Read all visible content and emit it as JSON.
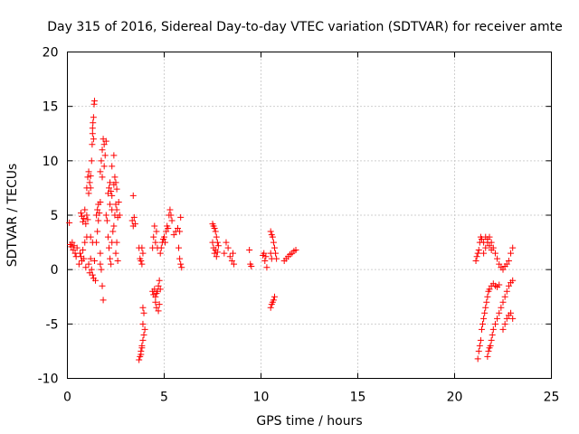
{
  "chart_data": {
    "type": "scatter",
    "title": "Day 315 of 2016, Sidereal Day-to-day VTEC variation (SDTVAR) for receiver amte",
    "xlabel": "GPS time / hours",
    "ylabel": "SDTVAR / TECUs",
    "xlim": [
      0,
      25
    ],
    "ylim": [
      -10,
      20
    ],
    "xticks": [
      0,
      5,
      10,
      15,
      20,
      25
    ],
    "yticks": [
      -10,
      -5,
      0,
      5,
      10,
      15,
      20
    ],
    "grid": true,
    "marker": "+",
    "color": "#ff0000",
    "series": [
      {
        "points": [
          [
            0.1,
            4.3
          ],
          [
            0.15,
            2.3
          ],
          [
            0.2,
            2.1
          ],
          [
            0.25,
            2.5
          ],
          [
            0.3,
            1.8
          ],
          [
            0.35,
            2.2
          ],
          [
            0.4,
            1.5
          ],
          [
            0.45,
            1.2
          ],
          [
            0.5,
            2.0
          ],
          [
            0.6,
            0.5
          ],
          [
            0.65,
            1.5
          ],
          [
            0.7,
            1.2
          ],
          [
            0.75,
            0.8
          ],
          [
            0.8,
            1.8
          ],
          [
            0.85,
            1.0
          ],
          [
            0.9,
            2.5
          ],
          [
            0.95,
            0.2
          ],
          [
            1.0,
            3.0
          ],
          [
            0.7,
            5.2
          ],
          [
            0.75,
            4.9
          ],
          [
            0.8,
            4.4
          ],
          [
            0.85,
            4.7
          ],
          [
            0.9,
            5.5
          ],
          [
            0.95,
            4.2
          ],
          [
            1.0,
            5.0
          ],
          [
            1.05,
            4.6
          ],
          [
            1.0,
            7.5
          ],
          [
            1.05,
            8.5
          ],
          [
            1.1,
            9.0
          ],
          [
            1.15,
            8.0
          ],
          [
            1.2,
            7.5
          ],
          [
            1.1,
            7.0
          ],
          [
            1.2,
            8.6
          ],
          [
            1.25,
            10.0
          ],
          [
            1.28,
            11.5
          ],
          [
            1.3,
            12.5
          ],
          [
            1.32,
            13.5
          ],
          [
            1.35,
            14.0
          ],
          [
            1.38,
            15.2
          ],
          [
            1.4,
            15.5
          ],
          [
            1.3,
            13.0
          ],
          [
            1.35,
            12.0
          ],
          [
            1.1,
            0.5
          ],
          [
            1.15,
            -0.3
          ],
          [
            1.2,
            1.0
          ],
          [
            1.25,
            0.0
          ],
          [
            1.3,
            -0.5
          ],
          [
            1.35,
            -0.8
          ],
          [
            1.4,
            0.8
          ],
          [
            1.45,
            -1.0
          ],
          [
            1.2,
            3.0
          ],
          [
            1.3,
            2.5
          ],
          [
            1.5,
            5.0
          ],
          [
            1.55,
            5.5
          ],
          [
            1.6,
            6.0
          ],
          [
            1.65,
            5.2
          ],
          [
            1.6,
            4.5
          ],
          [
            1.7,
            6.2
          ],
          [
            1.55,
            3.5
          ],
          [
            1.5,
            2.5
          ],
          [
            1.7,
            1.5
          ],
          [
            1.75,
            0.0
          ],
          [
            1.8,
            -1.5
          ],
          [
            1.85,
            -2.8
          ],
          [
            1.7,
            0.5
          ],
          [
            1.7,
            9.0
          ],
          [
            1.75,
            10.0
          ],
          [
            1.8,
            11.0
          ],
          [
            1.85,
            12.0
          ],
          [
            1.9,
            11.5
          ],
          [
            1.95,
            10.5
          ],
          [
            2.0,
            11.8
          ],
          [
            1.8,
            8.5
          ],
          [
            1.9,
            9.5
          ],
          [
            2.1,
            7.0
          ],
          [
            2.15,
            7.5
          ],
          [
            2.2,
            8.0
          ],
          [
            2.25,
            7.2
          ],
          [
            2.3,
            6.8
          ],
          [
            2.2,
            6.0
          ],
          [
            2.3,
            5.5
          ],
          [
            2.4,
            7.8
          ],
          [
            2.45,
            8.5
          ],
          [
            2.5,
            8.0
          ],
          [
            2.55,
            7.4
          ],
          [
            2.0,
            5.0
          ],
          [
            2.05,
            4.5
          ],
          [
            2.1,
            3.0
          ],
          [
            2.15,
            2.0
          ],
          [
            2.2,
            1.0
          ],
          [
            2.25,
            0.5
          ],
          [
            2.3,
            2.5
          ],
          [
            2.35,
            3.5
          ],
          [
            2.4,
            4.0
          ],
          [
            2.45,
            5.0
          ],
          [
            2.5,
            6.0
          ],
          [
            2.55,
            5.5
          ],
          [
            2.6,
            4.8
          ],
          [
            2.65,
            6.2
          ],
          [
            2.7,
            5.0
          ],
          [
            2.5,
            1.5
          ],
          [
            2.55,
            2.5
          ],
          [
            2.6,
            0.8
          ],
          [
            2.4,
            10.5
          ],
          [
            2.3,
            9.5
          ],
          [
            3.4,
            6.8
          ],
          [
            3.35,
            4.5
          ],
          [
            3.4,
            4.0
          ],
          [
            3.45,
            4.8
          ],
          [
            3.5,
            4.2
          ],
          [
            3.7,
            2.0
          ],
          [
            3.75,
            1.0
          ],
          [
            3.8,
            0.8
          ],
          [
            3.85,
            0.5
          ],
          [
            3.9,
            1.5
          ],
          [
            3.85,
            2.0
          ],
          [
            3.7,
            -8.3
          ],
          [
            3.75,
            -8.0
          ],
          [
            3.8,
            -7.5
          ],
          [
            3.85,
            -7.0
          ],
          [
            3.9,
            -6.5
          ],
          [
            3.95,
            -6.0
          ],
          [
            3.8,
            -7.8
          ],
          [
            3.85,
            -7.2
          ],
          [
            3.9,
            -5.0
          ],
          [
            3.95,
            -4.0
          ],
          [
            3.9,
            -3.5
          ],
          [
            4.0,
            -5.5
          ],
          [
            4.4,
            -2.0
          ],
          [
            4.45,
            -2.3
          ],
          [
            4.5,
            -1.8
          ],
          [
            4.55,
            -2.5
          ],
          [
            4.6,
            -2.2
          ],
          [
            4.65,
            -2.0
          ],
          [
            4.7,
            -1.5
          ],
          [
            4.75,
            -1.0
          ],
          [
            4.8,
            -1.8
          ],
          [
            4.55,
            -3.0
          ],
          [
            4.6,
            -3.5
          ],
          [
            4.7,
            -3.8
          ],
          [
            4.75,
            -3.2
          ],
          [
            4.4,
            2.0
          ],
          [
            4.45,
            3.0
          ],
          [
            4.5,
            4.0
          ],
          [
            4.55,
            2.5
          ],
          [
            4.6,
            3.5
          ],
          [
            4.65,
            2.0
          ],
          [
            4.8,
            1.5
          ],
          [
            4.85,
            2.0
          ],
          [
            4.9,
            2.5
          ],
          [
            4.95,
            2.8
          ],
          [
            5.0,
            3.0
          ],
          [
            5.05,
            2.5
          ],
          [
            5.1,
            3.5
          ],
          [
            5.15,
            4.0
          ],
          [
            5.2,
            3.8
          ],
          [
            5.25,
            5.0
          ],
          [
            5.3,
            5.5
          ],
          [
            5.35,
            5.0
          ],
          [
            5.4,
            4.5
          ],
          [
            5.5,
            3.2
          ],
          [
            5.6,
            3.5
          ],
          [
            5.7,
            3.8
          ],
          [
            5.8,
            3.5
          ],
          [
            5.75,
            2.0
          ],
          [
            5.8,
            1.0
          ],
          [
            5.85,
            0.5
          ],
          [
            5.9,
            0.2
          ],
          [
            5.85,
            4.8
          ],
          [
            7.5,
            4.2
          ],
          [
            7.55,
            4.0
          ],
          [
            7.6,
            3.8
          ],
          [
            7.65,
            3.5
          ],
          [
            7.7,
            3.0
          ],
          [
            7.75,
            2.5
          ],
          [
            7.8,
            2.2
          ],
          [
            7.5,
            2.5
          ],
          [
            7.55,
            2.0
          ],
          [
            7.6,
            1.5
          ],
          [
            7.65,
            1.8
          ],
          [
            7.7,
            1.2
          ],
          [
            7.75,
            1.6
          ],
          [
            8.1,
            1.5
          ],
          [
            8.2,
            2.5
          ],
          [
            8.3,
            2.0
          ],
          [
            8.4,
            1.2
          ],
          [
            8.5,
            0.8
          ],
          [
            8.55,
            1.5
          ],
          [
            8.6,
            0.5
          ],
          [
            9.4,
            1.8
          ],
          [
            9.45,
            0.5
          ],
          [
            9.5,
            0.3
          ],
          [
            10.1,
            1.3
          ],
          [
            10.15,
            1.5
          ],
          [
            10.2,
            0.8
          ],
          [
            10.25,
            1.2
          ],
          [
            10.3,
            0.2
          ],
          [
            10.5,
            3.5
          ],
          [
            10.55,
            3.2
          ],
          [
            10.6,
            3.0
          ],
          [
            10.65,
            2.5
          ],
          [
            10.7,
            2.0
          ],
          [
            10.75,
            1.5
          ],
          [
            10.8,
            1.0
          ],
          [
            10.5,
            1.5
          ],
          [
            10.55,
            1.0
          ],
          [
            10.5,
            -3.5
          ],
          [
            10.55,
            -3.2
          ],
          [
            10.6,
            -3.0
          ],
          [
            10.65,
            -2.8
          ],
          [
            10.7,
            -2.5
          ],
          [
            11.2,
            0.8
          ],
          [
            11.3,
            1.0
          ],
          [
            11.4,
            1.2
          ],
          [
            11.5,
            1.4
          ],
          [
            11.6,
            1.5
          ],
          [
            11.7,
            1.7
          ],
          [
            11.8,
            1.8
          ],
          [
            21.1,
            0.8
          ],
          [
            21.15,
            1.2
          ],
          [
            21.2,
            1.5
          ],
          [
            21.25,
            1.8
          ],
          [
            21.3,
            2.5
          ],
          [
            21.35,
            3.0
          ],
          [
            21.4,
            2.8
          ],
          [
            21.5,
            2.5
          ],
          [
            21.6,
            3.0
          ],
          [
            21.7,
            2.8
          ],
          [
            21.8,
            3.0
          ],
          [
            21.9,
            2.5
          ],
          [
            22.0,
            2.0
          ],
          [
            22.1,
            1.5
          ],
          [
            22.2,
            1.0
          ],
          [
            22.3,
            0.5
          ],
          [
            22.4,
            0.2
          ],
          [
            22.5,
            0.0
          ],
          [
            22.6,
            0.3
          ],
          [
            22.7,
            0.5
          ],
          [
            22.8,
            0.8
          ],
          [
            22.9,
            1.5
          ],
          [
            23.0,
            2.0
          ],
          [
            21.5,
            1.5
          ],
          [
            21.6,
            2.0
          ],
          [
            21.7,
            2.5
          ],
          [
            21.8,
            2.2
          ],
          [
            21.9,
            1.8
          ],
          [
            21.2,
            -8.2
          ],
          [
            21.25,
            -7.5
          ],
          [
            21.3,
            -7.0
          ],
          [
            21.35,
            -6.5
          ],
          [
            21.4,
            -5.5
          ],
          [
            21.45,
            -5.0
          ],
          [
            21.5,
            -4.5
          ],
          [
            21.55,
            -4.0
          ],
          [
            21.6,
            -3.5
          ],
          [
            21.65,
            -3.0
          ],
          [
            21.7,
            -2.5
          ],
          [
            21.75,
            -2.0
          ],
          [
            21.8,
            -1.8
          ],
          [
            21.9,
            -1.5
          ],
          [
            22.0,
            -1.3
          ],
          [
            22.1,
            -1.5
          ],
          [
            22.2,
            -1.6
          ],
          [
            22.3,
            -1.4
          ],
          [
            21.7,
            -8.0
          ],
          [
            21.75,
            -7.5
          ],
          [
            21.8,
            -7.2
          ],
          [
            21.85,
            -7.0
          ],
          [
            21.9,
            -6.5
          ],
          [
            21.95,
            -6.0
          ],
          [
            22.0,
            -5.5
          ],
          [
            22.1,
            -5.0
          ],
          [
            22.2,
            -4.5
          ],
          [
            22.3,
            -4.0
          ],
          [
            22.4,
            -3.5
          ],
          [
            22.5,
            -3.0
          ],
          [
            22.6,
            -2.5
          ],
          [
            22.7,
            -2.0
          ],
          [
            22.8,
            -1.5
          ],
          [
            22.9,
            -1.2
          ],
          [
            23.0,
            -1.0
          ],
          [
            22.5,
            -5.5
          ],
          [
            22.6,
            -5.0
          ],
          [
            22.7,
            -4.5
          ],
          [
            22.8,
            -4.2
          ],
          [
            22.9,
            -4.0
          ],
          [
            23.0,
            -4.5
          ]
        ]
      }
    ]
  }
}
